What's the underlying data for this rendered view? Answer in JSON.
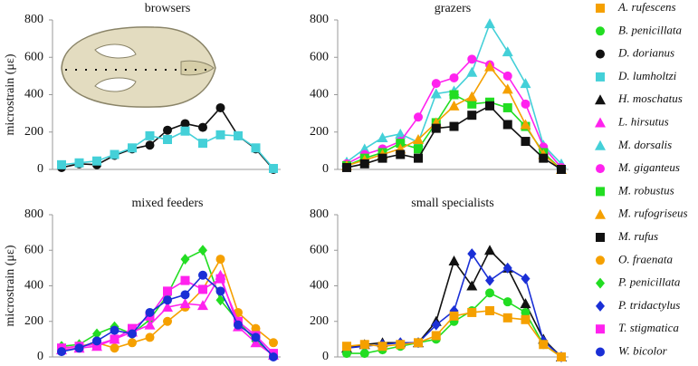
{
  "chart_data": [
    {
      "type": "line",
      "title": "browsers",
      "ylabel": "microstrain (με)",
      "categories": [
        null,
        null,
        null,
        null,
        null,
        null,
        null,
        null,
        null,
        null,
        null,
        null,
        null
      ],
      "ylim": [
        0,
        800
      ],
      "yticks": [
        0,
        200,
        400,
        600,
        800
      ],
      "series": [
        {
          "name": "D. dorianus",
          "color": "#111111",
          "marker": "circle",
          "values": [
            10,
            30,
            25,
            75,
            110,
            130,
            210,
            245,
            225,
            330,
            180,
            110,
            0
          ]
        },
        {
          "name": "D. lumholtzi",
          "color": "#44d0d8",
          "marker": "square",
          "values": [
            25,
            35,
            45,
            80,
            115,
            180,
            160,
            205,
            140,
            185,
            180,
            115,
            5
          ]
        }
      ]
    },
    {
      "type": "line",
      "title": "grazers",
      "categories": [
        null,
        null,
        null,
        null,
        null,
        null,
        null,
        null,
        null,
        null,
        null,
        null,
        null
      ],
      "ylim": [
        0,
        800
      ],
      "yticks": [
        0,
        200,
        400,
        600,
        800
      ],
      "series": [
        {
          "name": "M. dorsalis",
          "color": "#44d0d8",
          "marker": "triangle",
          "values": [
            40,
            110,
            170,
            190,
            145,
            405,
            420,
            520,
            780,
            630,
            460,
            130,
            30
          ]
        },
        {
          "name": "M. giganteus",
          "color": "#ff22ee",
          "marker": "circle",
          "values": [
            30,
            80,
            110,
            150,
            280,
            460,
            490,
            590,
            560,
            500,
            350,
            120,
            10
          ]
        },
        {
          "name": "M. robustus",
          "color": "#22dd22",
          "marker": "square",
          "values": [
            20,
            60,
            90,
            140,
            110,
            250,
            400,
            350,
            360,
            330,
            230,
            90,
            0
          ]
        },
        {
          "name": "M. rufogriseus",
          "color": "#f5a000",
          "marker": "triangle",
          "values": [
            20,
            50,
            80,
            110,
            160,
            250,
            340,
            390,
            550,
            430,
            240,
            80,
            0
          ]
        },
        {
          "name": "M. rufus",
          "color": "#111111",
          "marker": "square",
          "values": [
            10,
            30,
            60,
            80,
            60,
            220,
            230,
            290,
            340,
            240,
            150,
            60,
            0
          ]
        }
      ]
    },
    {
      "type": "line",
      "title": "mixed feeders",
      "ylabel": "microstrain (με)",
      "categories": [
        null,
        null,
        null,
        null,
        null,
        null,
        null,
        null,
        null,
        null,
        null,
        null,
        null
      ],
      "ylim": [
        0,
        800
      ],
      "yticks": [
        0,
        200,
        400,
        600,
        800
      ],
      "series": [
        {
          "name": "P. penicillata",
          "color": "#22dd22",
          "marker": "diamond",
          "values": [
            60,
            70,
            130,
            170,
            130,
            210,
            350,
            550,
            600,
            320,
            200,
            90,
            10
          ]
        },
        {
          "name": "O. fraenata",
          "color": "#f5a000",
          "marker": "circle",
          "values": [
            50,
            60,
            80,
            50,
            80,
            110,
            200,
            280,
            380,
            550,
            250,
            160,
            80
          ]
        },
        {
          "name": "T. stigmatica",
          "color": "#ff22ee",
          "marker": "square",
          "values": [
            50,
            60,
            70,
            100,
            160,
            230,
            370,
            430,
            380,
            440,
            200,
            120,
            20
          ]
        },
        {
          "name": "L. hirsutus",
          "color": "#ff22ee",
          "marker": "triangle",
          "values": [
            40,
            50,
            60,
            100,
            140,
            180,
            280,
            300,
            290,
            460,
            170,
            80,
            10
          ]
        },
        {
          "name": "W. bicolor",
          "color": "#1a2fd6",
          "marker": "circle",
          "values": [
            30,
            50,
            90,
            150,
            130,
            250,
            320,
            350,
            460,
            370,
            180,
            110,
            0
          ]
        }
      ]
    },
    {
      "type": "line",
      "title": "small specialists",
      "categories": [
        null,
        null,
        null,
        null,
        null,
        null,
        null,
        null,
        null,
        null,
        null,
        null,
        null
      ],
      "ylim": [
        0,
        800
      ],
      "yticks": [
        0,
        200,
        400,
        600,
        800
      ],
      "series": [
        {
          "name": "H. moschatus",
          "color": "#111111",
          "marker": "triangle",
          "values": [
            50,
            70,
            80,
            80,
            80,
            200,
            540,
            400,
            600,
            500,
            300,
            100,
            0
          ]
        },
        {
          "name": "P. tridactylus",
          "color": "#1a2fd6",
          "marker": "diamond",
          "values": [
            50,
            60,
            70,
            80,
            80,
            180,
            260,
            580,
            430,
            500,
            440,
            90,
            0
          ]
        },
        {
          "name": "B. penicillata",
          "color": "#22dd22",
          "marker": "circle",
          "values": [
            20,
            20,
            40,
            60,
            80,
            100,
            200,
            260,
            360,
            310,
            250,
            70,
            0
          ]
        },
        {
          "name": "A. rufescens",
          "color": "#f5a000",
          "marker": "square",
          "values": [
            60,
            70,
            60,
            70,
            80,
            120,
            230,
            250,
            260,
            220,
            210,
            70,
            0
          ]
        }
      ]
    }
  ],
  "legend": [
    {
      "name": "A. rufescens",
      "color": "#f5a000",
      "marker": "square"
    },
    {
      "name": "B. penicillata",
      "color": "#22dd22",
      "marker": "circle"
    },
    {
      "name": "D. dorianus",
      "color": "#111111",
      "marker": "circle"
    },
    {
      "name": "D. lumholtzi",
      "color": "#44d0d8",
      "marker": "square"
    },
    {
      "name": "H. moschatus",
      "color": "#111111",
      "marker": "triangle"
    },
    {
      "name": "L. hirsutus",
      "color": "#ff22ee",
      "marker": "triangle"
    },
    {
      "name": "M. dorsalis",
      "color": "#44d0d8",
      "marker": "triangle"
    },
    {
      "name": "M. giganteus",
      "color": "#ff22ee",
      "marker": "circle"
    },
    {
      "name": "M. robustus",
      "color": "#22dd22",
      "marker": "square"
    },
    {
      "name": "M. rufogriseus",
      "color": "#f5a000",
      "marker": "triangle"
    },
    {
      "name": "M. rufus",
      "color": "#111111",
      "marker": "square"
    },
    {
      "name": "O. fraenata",
      "color": "#f5a000",
      "marker": "circle"
    },
    {
      "name": "P. penicillata",
      "color": "#22dd22",
      "marker": "diamond"
    },
    {
      "name": "P. tridactylus",
      "color": "#1a2fd6",
      "marker": "diamond"
    },
    {
      "name": "T. stigmatica",
      "color": "#ff22ee",
      "marker": "square"
    },
    {
      "name": "W. bicolor",
      "color": "#1a2fd6",
      "marker": "circle"
    }
  ]
}
